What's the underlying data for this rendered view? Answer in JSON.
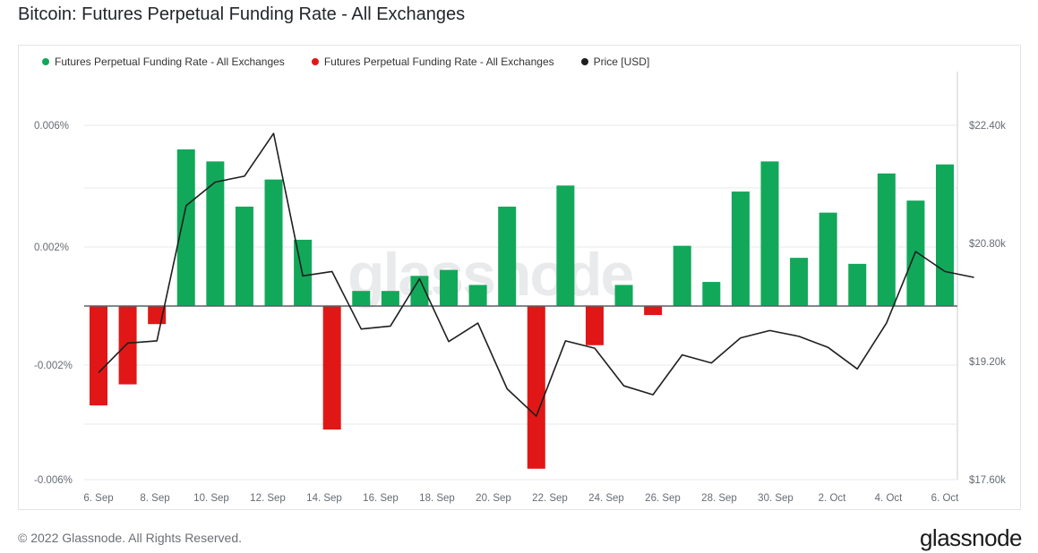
{
  "page_title": "Bitcoin: Futures Perpetual Funding Rate - All Exchanges",
  "watermark": "glassnode",
  "footer": {
    "copyright": "© 2022 Glassnode. All Rights Reserved.",
    "brand": "glassnode"
  },
  "colors": {
    "positive": "#12a85a",
    "negative": "#e11717",
    "price": "#1f1f1f",
    "grid": "#e6e8eb"
  },
  "chart_data": {
    "type": "bar",
    "title": "Bitcoin: Futures Perpetual Funding Rate - All Exchanges",
    "legend_position": "top-left",
    "grid": true,
    "series": [
      {
        "name": "Futures Perpetual Funding Rate - All Exchanges",
        "color": "#12a85a",
        "kind": "bar-positive"
      },
      {
        "name": "Futures Perpetual Funding Rate - All Exchanges",
        "color": "#e11717",
        "kind": "bar-negative"
      },
      {
        "name": "Price [USD]",
        "color": "#1f1f1f",
        "kind": "line"
      }
    ],
    "dates": [
      "6. Sep",
      "7. Sep",
      "8. Sep",
      "9. Sep",
      "10. Sep",
      "11. Sep",
      "12. Sep",
      "13. Sep",
      "14. Sep",
      "15. Sep",
      "16. Sep",
      "17. Sep",
      "18. Sep",
      "19. Sep",
      "20. Sep",
      "21. Sep",
      "22. Sep",
      "23. Sep",
      "24. Sep",
      "25. Sep",
      "26. Sep",
      "27. Sep",
      "28. Sep",
      "29. Sep",
      "30. Sep",
      "1. Oct",
      "2. Oct",
      "3. Oct",
      "4. Oct",
      "5. Oct",
      "6. Oct"
    ],
    "funding_rate_pct": [
      -0.0033,
      -0.0026,
      -0.0006,
      0.0052,
      0.0048,
      0.0033,
      0.0042,
      0.0022,
      -0.0041,
      0.0005,
      0.0005,
      0.001,
      0.0012,
      0.0007,
      0.0033,
      -0.0054,
      0.004,
      -0.0013,
      0.0007,
      -0.0003,
      0.002,
      0.0008,
      0.0038,
      0.0048,
      0.0016,
      0.0031,
      0.0014,
      0.0044,
      0.0035,
      0.0047,
      null
    ],
    "price_usd": [
      19050,
      19450,
      19480,
      21310,
      21630,
      21710,
      22290,
      20360,
      20420,
      19640,
      19680,
      20320,
      19470,
      19720,
      18830,
      18460,
      19480,
      19380,
      18870,
      18750,
      19290,
      19180,
      19520,
      19620,
      19540,
      19390,
      19100,
      19720,
      20690,
      20420,
      20340
    ],
    "x_tick_labels": [
      "6. Sep",
      "8. Sep",
      "10. Sep",
      "12. Sep",
      "14. Sep",
      "16. Sep",
      "18. Sep",
      "20. Sep",
      "22. Sep",
      "24. Sep",
      "26. Sep",
      "28. Sep",
      "30. Sep",
      "2. Oct",
      "4. Oct",
      "6. Oct"
    ],
    "y_left_ticks": [
      "0.006%",
      "0.002%",
      "-0.002%",
      "-0.006%"
    ],
    "y_right_ticks": [
      "$22.40k",
      "$20.80k",
      "$19.20k",
      "$17.60k"
    ],
    "y_left_range": [
      -0.006,
      0.006
    ],
    "y_right_range": [
      17600,
      22400
    ]
  }
}
